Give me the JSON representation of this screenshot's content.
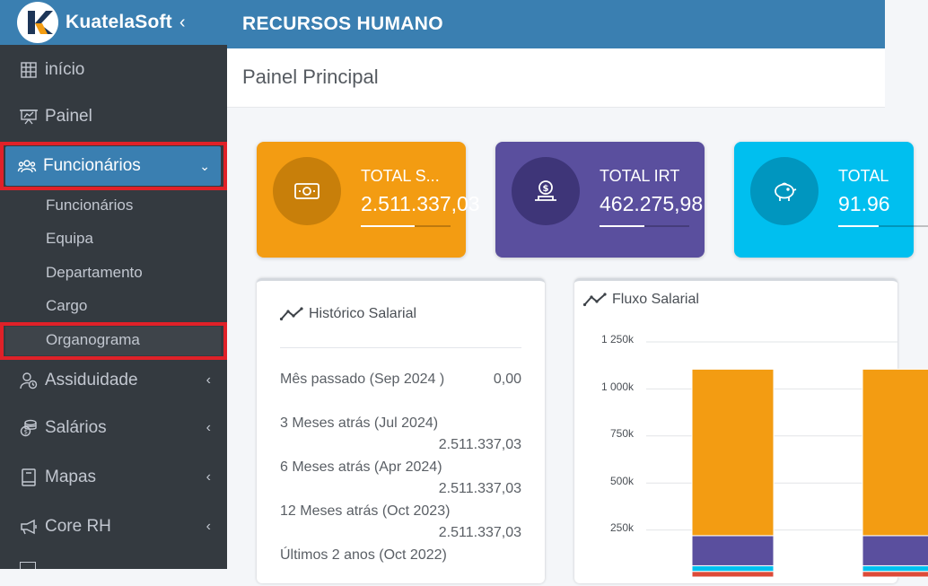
{
  "brand": {
    "name": "KuatelaSoft",
    "toggle_icon": "chevron-left-icon"
  },
  "topbar": {
    "title": "RECURSOS HUMANO"
  },
  "page": {
    "title": "Painel Principal"
  },
  "sidebar": {
    "items": [
      {
        "label": "início",
        "icon": "dashboard-grid-icon"
      },
      {
        "label": "Painel",
        "icon": "presentation-board-icon"
      },
      {
        "label": "Funcionários",
        "icon": "users-icon",
        "expanded": true
      },
      {
        "label": "Assiduidade",
        "icon": "user-clock-icon"
      },
      {
        "label": "Salários",
        "icon": "coins-icon"
      },
      {
        "label": "Mapas",
        "icon": "book-icon"
      },
      {
        "label": "Core RH",
        "icon": "megaphone-icon"
      }
    ],
    "submenu": [
      {
        "label": "Funcionários"
      },
      {
        "label": "Equipa"
      },
      {
        "label": "Departamento"
      },
      {
        "label": "Cargo"
      },
      {
        "label": "Organograma"
      }
    ]
  },
  "info_boxes": [
    {
      "label": "TOTAL S...",
      "value": "2.511.337,03",
      "color": "#f39c12",
      "progress": 0.6,
      "icon": "money-bill-icon"
    },
    {
      "label": "TOTAL IRT",
      "value": "462.275,98",
      "color": "#5a4f9e",
      "progress": 0.5,
      "icon": "hand-coin-icon"
    },
    {
      "label": "TOTAL",
      "value": "91.96",
      "color": "#00bfef",
      "progress": 0.45,
      "icon": "piggy-bank-icon"
    }
  ],
  "historico": {
    "title": "Histórico Salarial",
    "rows": [
      {
        "label": "Mês passado (Sep 2024 )",
        "value": "0,00"
      },
      {
        "label": "3 Meses atrás (Jul 2024)",
        "value": "2.511.337,03"
      },
      {
        "label": "6 Meses atrás (Apr 2024)",
        "value": "2.511.337,03"
      },
      {
        "label": "12 Meses atrás (Oct 2023)",
        "value": "2.511.337,03"
      },
      {
        "label": "Últimos 2 anos (Oct 2022)",
        "value": ""
      }
    ]
  },
  "fluxo": {
    "title": "Fluxo Salarial",
    "chart_data": {
      "type": "bar",
      "stacked": true,
      "y_ticks": [
        "1 250k",
        "1 000k",
        "750k",
        "500k",
        "250k"
      ],
      "ylim": [
        0,
        1250000
      ],
      "grid": true,
      "stacks": [
        {
          "segments": [
            {
              "value": 30000,
              "color": "#dd4b39"
            },
            {
              "value": 30000,
              "color": "#00c0ef"
            },
            {
              "value": 160000,
              "color": "#5a4f9e"
            },
            {
              "value": 885000,
              "color": "#f39c12"
            }
          ]
        },
        {
          "segments": [
            {
              "value": 30000,
              "color": "#dd4b39"
            },
            {
              "value": 30000,
              "color": "#00c0ef"
            },
            {
              "value": 160000,
              "color": "#5a4f9e"
            },
            {
              "value": 885000,
              "color": "#f39c12"
            }
          ]
        }
      ]
    }
  }
}
